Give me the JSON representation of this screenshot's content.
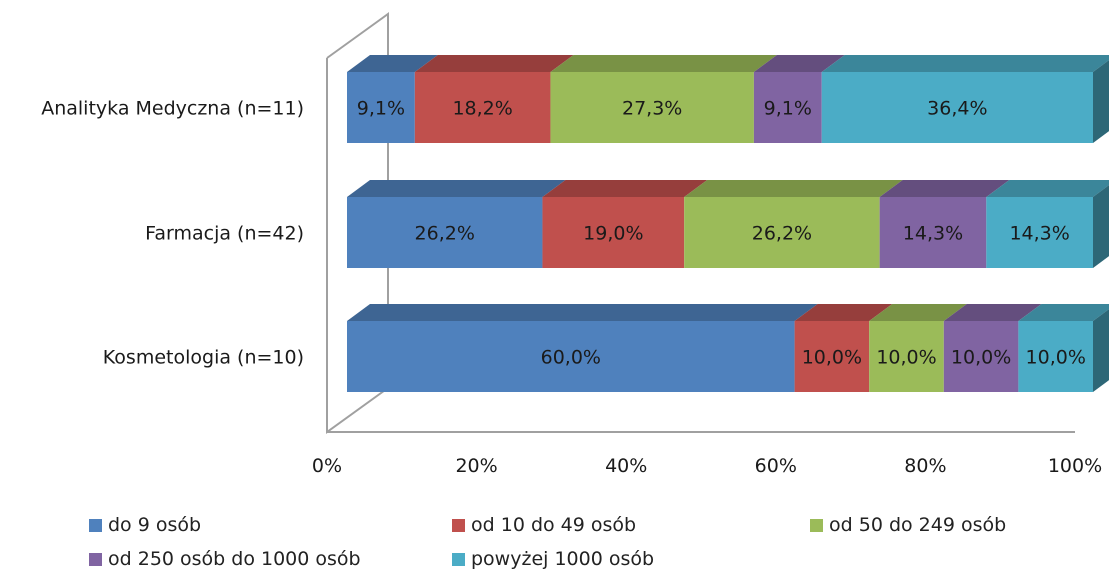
{
  "chart_data": {
    "type": "bar",
    "orientation": "horizontal",
    "stacked": "100%",
    "style": "3d",
    "categories": [
      "Analityka Medyczna (n=11)",
      "Farmacja (n=42)",
      "Kosmetologia (n=10)"
    ],
    "series": [
      {
        "name": "do 9 osób",
        "color": "#4F81BD",
        "values": [
          9.1,
          26.2,
          60.0
        ],
        "labels": [
          "9,1%",
          "26,2%",
          "60,0%"
        ]
      },
      {
        "name": "od 10 do 49 osób",
        "color": "#C0504D",
        "values": [
          18.2,
          19.0,
          10.0
        ],
        "labels": [
          "18,2%",
          "19,0%",
          "10,0%"
        ]
      },
      {
        "name": "od 50 do 249 osób",
        "color": "#9BBB59",
        "values": [
          27.3,
          26.2,
          10.0
        ],
        "labels": [
          "27,3%",
          "26,2%",
          "10,0%"
        ]
      },
      {
        "name": "od  250 osób do 1000 osób",
        "color": "#8064A2",
        "values": [
          9.1,
          14.3,
          10.0
        ],
        "labels": [
          "9,1%",
          "14,3%",
          "10,0%"
        ]
      },
      {
        "name": "powyżej 1000 osób",
        "color": "#4BACC6",
        "values": [
          36.4,
          14.3,
          10.0
        ],
        "labels": [
          "36,4%",
          "14,3%",
          "10,0%"
        ]
      }
    ],
    "x_ticks": [
      "0%",
      "20%",
      "40%",
      "60%",
      "80%",
      "100%"
    ],
    "xlim": [
      0,
      100
    ],
    "grid": false,
    "legend_position": "bottom"
  }
}
